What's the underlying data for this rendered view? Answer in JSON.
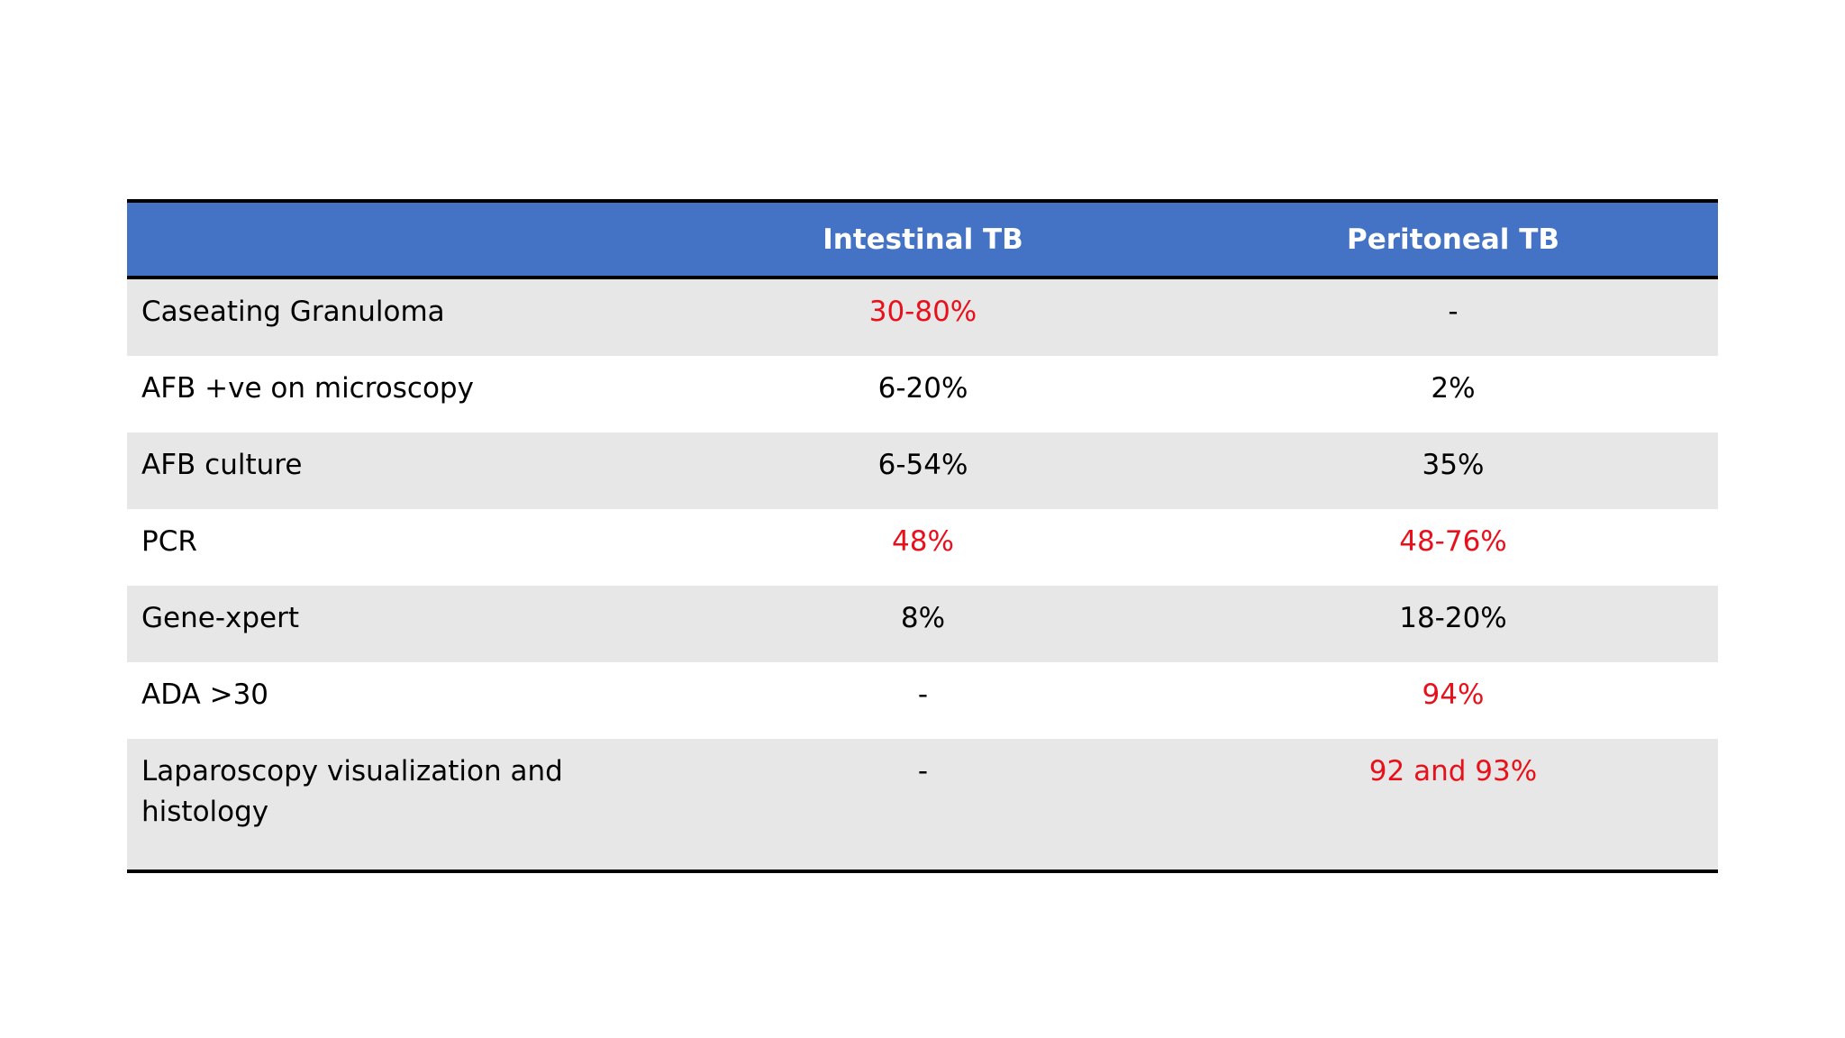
{
  "table": {
    "header": [
      "Intestinal TB",
      "Peritoneal TB"
    ],
    "rows": [
      [
        "Caseating Granuloma",
        "30-80%",
        "-"
      ],
      [
        "AFB +ve on microscopy",
        "6-20%",
        "2%"
      ],
      [
        "AFB culture",
        "6-54%",
        "35%"
      ],
      [
        "PCR",
        "48%",
        "48-76%"
      ],
      [
        "Gene-xpert",
        "8%",
        "18-20%"
      ],
      [
        "ADA >30",
        "-",
        "94%"
      ],
      [
        "Laparoscopy visualization and histology",
        "-",
        "92 and 93%"
      ]
    ],
    "highlight_color": "#e8101a",
    "highlighted": [
      [
        0,
        1
      ],
      [
        3,
        1
      ],
      [
        3,
        2
      ],
      [
        5,
        2
      ],
      [
        6,
        2
      ]
    ]
  }
}
